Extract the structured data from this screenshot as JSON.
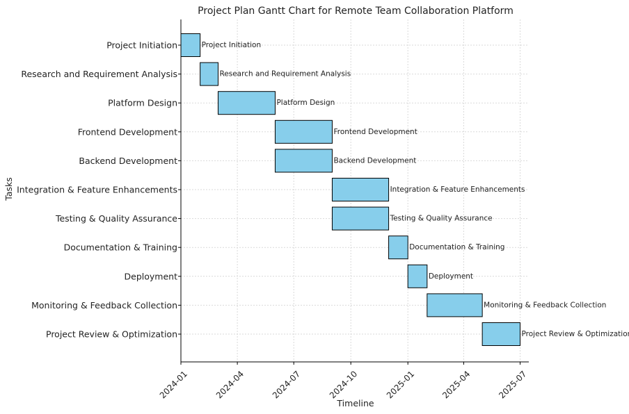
{
  "chart_data": {
    "type": "gantt",
    "title": "Project Plan Gantt Chart for Remote Team Collaboration Platform",
    "xlabel": "Timeline",
    "ylabel": "Tasks",
    "x_ticks": [
      "2024-01",
      "2024-04",
      "2024-07",
      "2024-10",
      "2025-01",
      "2025-04",
      "2025-07"
    ],
    "xlim": [
      "2024-01-01",
      "2025-07-15"
    ],
    "grid": true,
    "bar_color": "#87ceeb",
    "bar_edge_color": "#000000",
    "tasks": [
      {
        "name": "Project Initiation",
        "start": "2024-01-01",
        "end": "2024-02-01"
      },
      {
        "name": "Research and Requirement Analysis",
        "start": "2024-02-01",
        "end": "2024-03-01"
      },
      {
        "name": "Platform Design",
        "start": "2024-03-01",
        "end": "2024-06-01"
      },
      {
        "name": "Frontend Development",
        "start": "2024-06-01",
        "end": "2024-09-01"
      },
      {
        "name": "Backend Development",
        "start": "2024-06-01",
        "end": "2024-09-01"
      },
      {
        "name": "Integration & Feature Enhancements",
        "start": "2024-09-01",
        "end": "2024-12-01"
      },
      {
        "name": "Testing & Quality Assurance",
        "start": "2024-09-01",
        "end": "2024-12-01"
      },
      {
        "name": "Documentation & Training",
        "start": "2024-12-01",
        "end": "2025-01-01"
      },
      {
        "name": "Deployment",
        "start": "2025-01-01",
        "end": "2025-02-01"
      },
      {
        "name": "Monitoring & Feedback Collection",
        "start": "2025-02-01",
        "end": "2025-05-01"
      },
      {
        "name": "Project Review & Optimization",
        "start": "2025-05-01",
        "end": "2025-07-01"
      }
    ]
  }
}
